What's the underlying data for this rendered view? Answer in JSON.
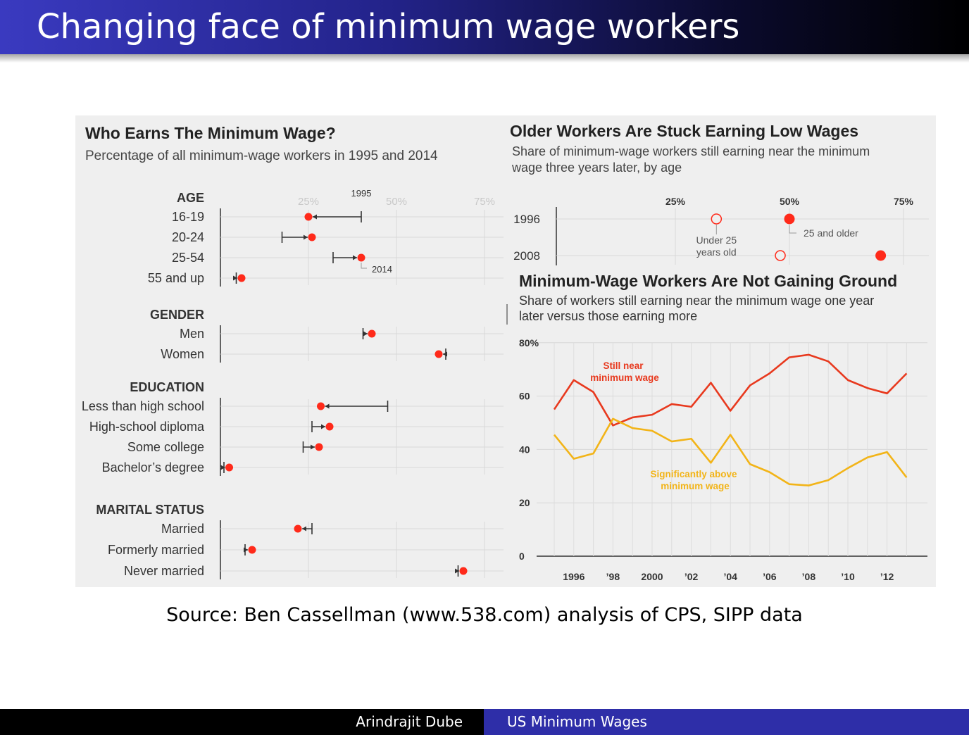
{
  "slide": {
    "title": "Changing face of minimum wage workers",
    "source": "Source: Ben Cassellman (www.538.com) analysis of CPS, SIPP data",
    "footer_author": "Arindrajit Dube",
    "footer_title": "US Minimum Wages"
  },
  "chart_data": [
    {
      "type": "dot-arrow",
      "title": "Who Earns The Minimum Wage?",
      "subtitle": "Percentage of all minimum-wage workers in 1995 and 2014",
      "x_ticks": [
        "25%",
        "50%",
        "75%"
      ],
      "xlim": [
        0,
        80
      ],
      "series_labels": {
        "from": "1995",
        "to": "2014"
      },
      "groups": [
        {
          "name": "AGE",
          "rows": [
            {
              "label": "16-19",
              "y1995": 40,
              "y2014": 25
            },
            {
              "label": "20-24",
              "y1995": 17.5,
              "y2014": 26
            },
            {
              "label": "25-54",
              "y1995": 32,
              "y2014": 40
            },
            {
              "label": "55 and up",
              "y1995": 4.5,
              "y2014": 6
            }
          ]
        },
        {
          "name": "GENDER",
          "rows": [
            {
              "label": "Men",
              "y1995": 40.5,
              "y2014": 43
            },
            {
              "label": "Women",
              "y1995": 64,
              "y2014": 62
            }
          ]
        },
        {
          "name": "EDUCATION",
          "rows": [
            {
              "label": "Less than high school",
              "y1995": 47.5,
              "y2014": 28.5
            },
            {
              "label": "High-school diploma",
              "y1995": 26,
              "y2014": 31
            },
            {
              "label": "Some college",
              "y1995": 23.5,
              "y2014": 28
            },
            {
              "label": "Bachelor’s degree",
              "y1995": 1,
              "y2014": 2.5
            }
          ]
        },
        {
          "name": "MARITAL STATUS",
          "rows": [
            {
              "label": "Married",
              "y1995": 26,
              "y2014": 22
            },
            {
              "label": "Formerly married",
              "y1995": 7,
              "y2014": 9
            },
            {
              "label": "Never married",
              "y1995": 67.5,
              "y2014": 69
            }
          ]
        }
      ]
    },
    {
      "type": "dot",
      "title": "Older Workers Are Stuck Earning Low Wages",
      "subtitle": "Share of minimum-wage workers still earning near the minimum wage three years later, by age",
      "x_ticks": [
        "25%",
        "50%",
        "75%"
      ],
      "xlim": [
        25,
        75
      ],
      "categories": [
        "1996",
        "2008"
      ],
      "series": [
        {
          "name": "Under 25 years old",
          "values": [
            34,
            48
          ]
        },
        {
          "name": "25 and older",
          "values": [
            50,
            70
          ]
        }
      ]
    },
    {
      "type": "line",
      "title": "Minimum-Wage Workers Are Not Gaining Ground",
      "subtitle": "Share of workers still earning near the minimum wage one year later versus those earning more",
      "x": [
        1995,
        1996,
        1997,
        1998,
        1999,
        2000,
        2001,
        2002,
        2003,
        2004,
        2005,
        2006,
        2007,
        2008,
        2009,
        2010,
        2011,
        2012,
        2013
      ],
      "x_tick_labels": [
        "1996",
        "’98",
        "2000",
        "’02",
        "’04",
        "’06",
        "’08",
        "’10",
        "’12"
      ],
      "y_tick_labels": [
        "80%",
        "60",
        "40",
        "20",
        "0"
      ],
      "ylim": [
        0,
        80
      ],
      "series": [
        {
          "name": "Still near minimum wage",
          "color": "#e8391e",
          "values": [
            55,
            66,
            61.5,
            49,
            52,
            53,
            57,
            56,
            65,
            54.5,
            64,
            68.5,
            74.5,
            75.5,
            73,
            66,
            63,
            61,
            68.5
          ]
        },
        {
          "name": "Significantly above minimum wage",
          "color": "#f2b418",
          "values": [
            45.5,
            36.5,
            38.5,
            51.5,
            48,
            47,
            43,
            44,
            35,
            45.5,
            34.5,
            31.5,
            27,
            26.5,
            28.5,
            33,
            37,
            39,
            29.5
          ]
        }
      ]
    }
  ],
  "colors": {
    "dot": "#ff2a1a",
    "line_red": "#e8391e",
    "line_yellow": "#f2b418",
    "panel_bg": "#efefef"
  }
}
